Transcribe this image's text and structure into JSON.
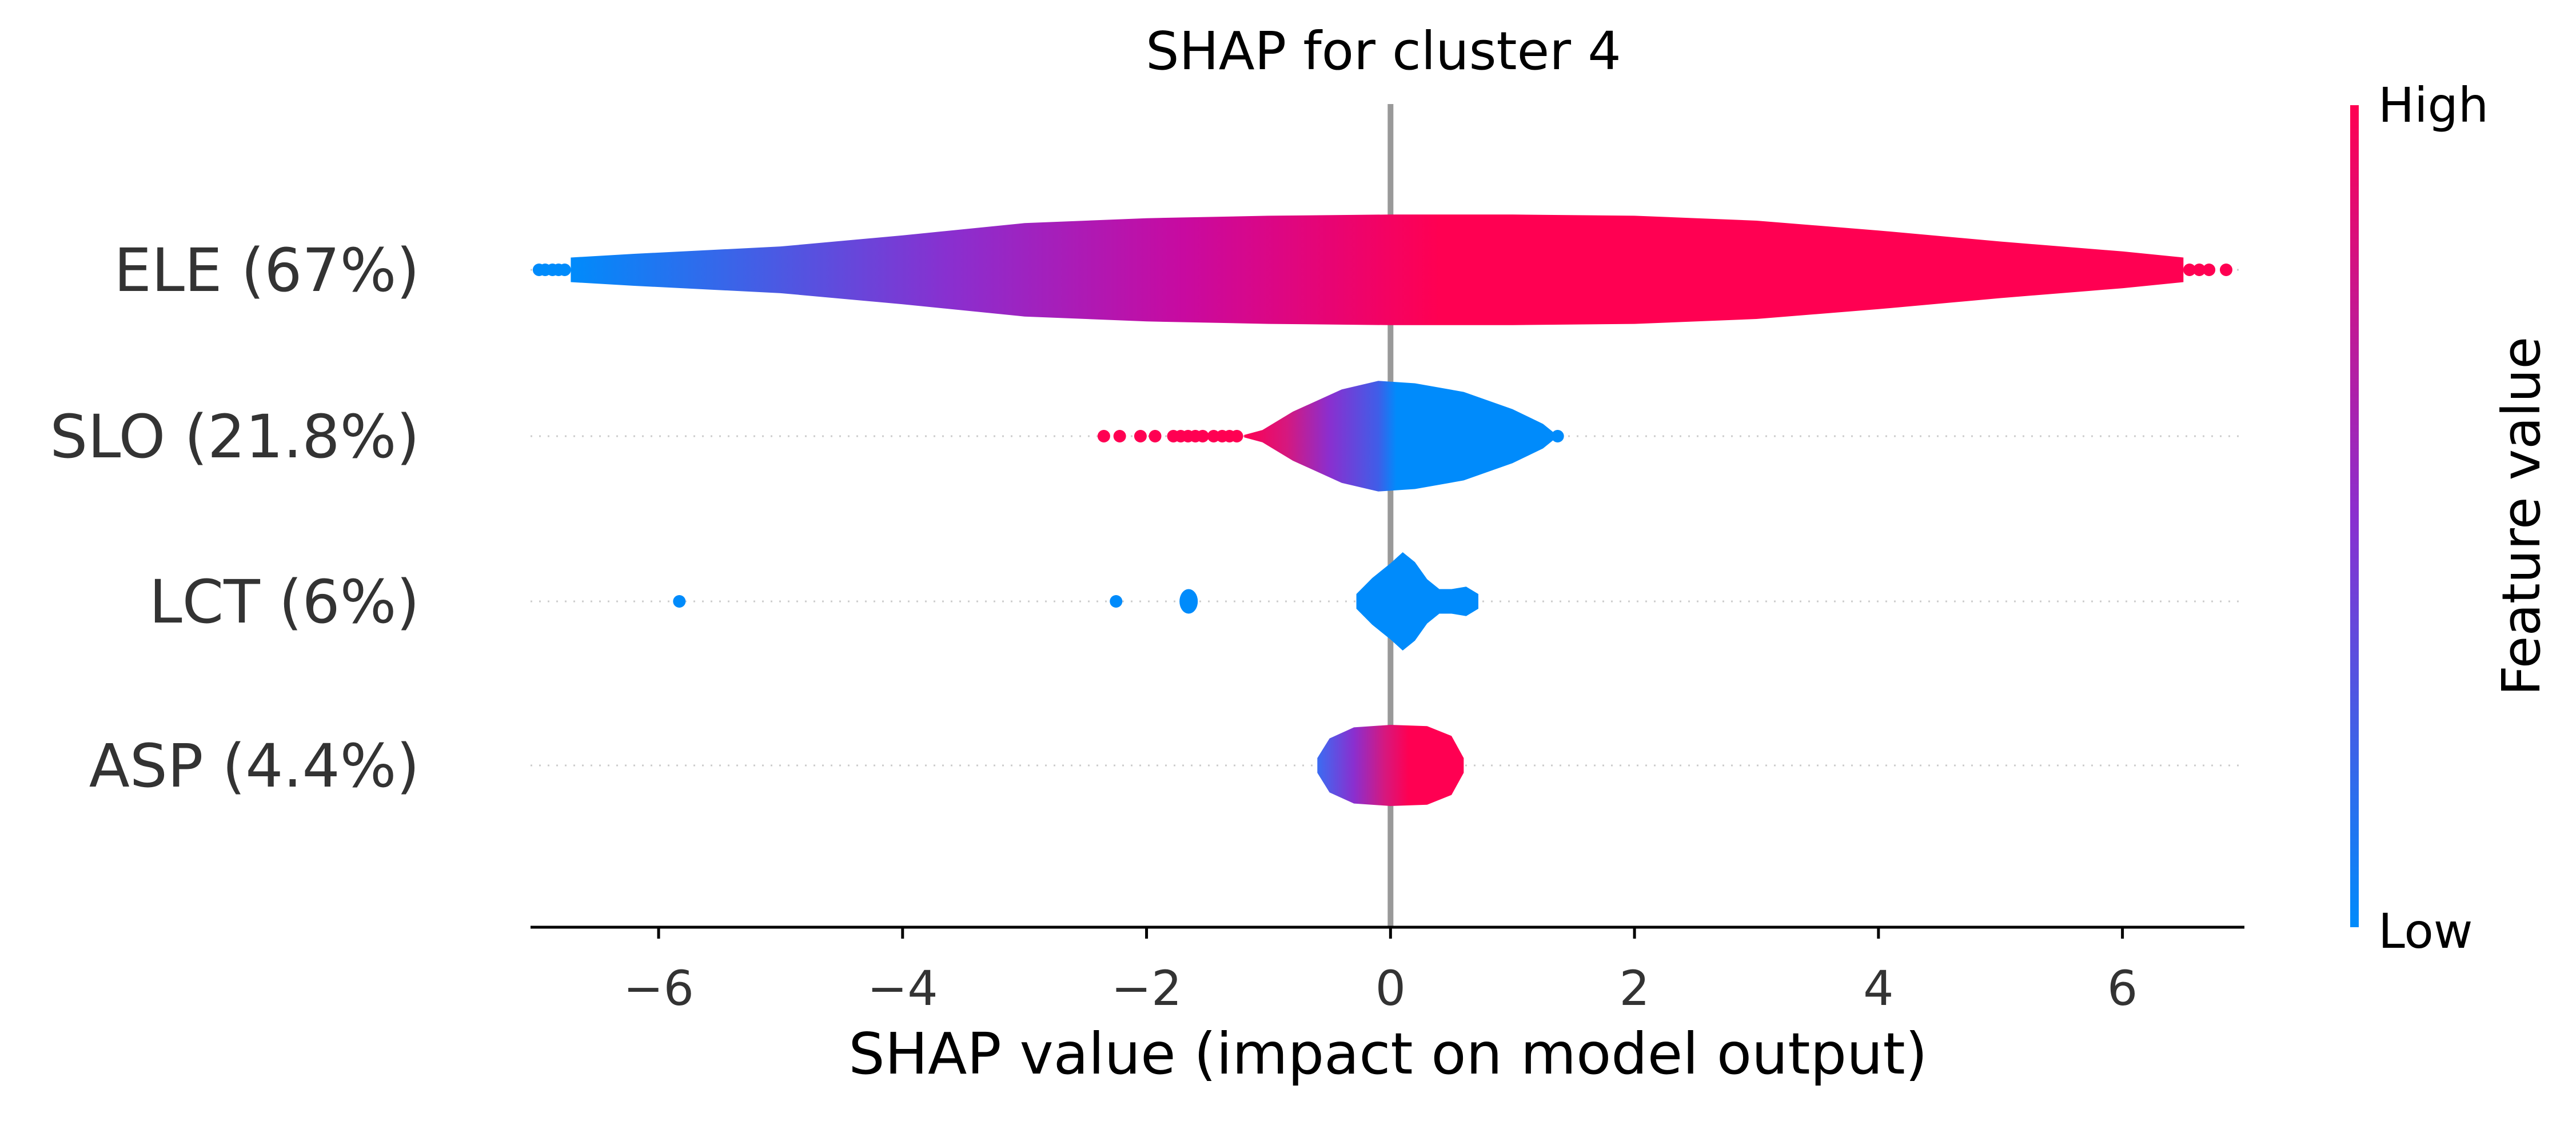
{
  "chart_data": {
    "type": "violin",
    "title": "SHAP for cluster 4",
    "xlabel": "SHAP value (impact on model output)",
    "xlim": [
      -7.05,
      7.0
    ],
    "xticks": [
      -6,
      -4,
      -2,
      0,
      2,
      4,
      6
    ],
    "xtick_labels": [
      "−6",
      "−4",
      "−2",
      "0",
      "2",
      "4",
      "6"
    ],
    "colorbar": {
      "label": "Feature value",
      "high_label": "High",
      "low_label": "Low",
      "high_color": "#ff0052",
      "low_color": "#008bfb"
    },
    "features": [
      {
        "label": "ELE (67%)",
        "violin": [
          [
            -6.72,
            0.5
          ],
          [
            -6.2,
            0.65
          ],
          [
            -5,
            0.95
          ],
          [
            -4,
            1.4
          ],
          [
            -3,
            1.9
          ],
          [
            -2,
            2.1
          ],
          [
            -1,
            2.2
          ],
          [
            0,
            2.25
          ],
          [
            1,
            2.25
          ],
          [
            2,
            2.2
          ],
          [
            3,
            2.0
          ],
          [
            4,
            1.6
          ],
          [
            5,
            1.15
          ],
          [
            6,
            0.75
          ],
          [
            6.5,
            0.5
          ]
        ],
        "gradient": [
          [
            -6.72,
            "#008bfb"
          ],
          [
            -3.6,
            "#8a2fcf"
          ],
          [
            -1.7,
            "#c80aa0"
          ],
          [
            0.4,
            "#ff0052"
          ],
          [
            6.5,
            "#ff0052"
          ]
        ],
        "points": [
          {
            "x": -6.98,
            "color": "low"
          },
          {
            "x": -6.93,
            "color": "low"
          },
          {
            "x": -6.87,
            "color": "low"
          },
          {
            "x": -6.82,
            "color": "low"
          },
          {
            "x": -6.77,
            "color": "low"
          },
          {
            "x": 6.55,
            "color": "high"
          },
          {
            "x": 6.63,
            "color": "high"
          },
          {
            "x": 6.71,
            "color": "high"
          },
          {
            "x": 6.85,
            "color": "high"
          }
        ]
      },
      {
        "label": "SLO (21.8%)",
        "violin": [
          [
            -1.2,
            0.05
          ],
          [
            -1.05,
            0.25
          ],
          [
            -0.8,
            1.0
          ],
          [
            -0.4,
            1.9
          ],
          [
            -0.1,
            2.25
          ],
          [
            0.2,
            2.15
          ],
          [
            0.6,
            1.8
          ],
          [
            1.0,
            1.1
          ],
          [
            1.25,
            0.5
          ],
          [
            1.35,
            0.1
          ]
        ],
        "gradient": [
          [
            -1.2,
            "#ff0052"
          ],
          [
            -0.85,
            "#d5187f"
          ],
          [
            -0.5,
            "#8a2fcf"
          ],
          [
            -0.1,
            "#3f5ee8"
          ],
          [
            0.05,
            "#008bfb"
          ],
          [
            1.35,
            "#008bfb"
          ]
        ],
        "points": [
          {
            "x": -2.35,
            "color": "high"
          },
          {
            "x": -2.22,
            "color": "high"
          },
          {
            "x": -2.05,
            "color": "high"
          },
          {
            "x": -1.93,
            "color": "high"
          },
          {
            "x": -1.78,
            "color": "high"
          },
          {
            "x": -1.72,
            "color": "high"
          },
          {
            "x": -1.66,
            "color": "high"
          },
          {
            "x": -1.6,
            "color": "high"
          },
          {
            "x": -1.54,
            "color": "high"
          },
          {
            "x": -1.45,
            "color": "high"
          },
          {
            "x": -1.38,
            "color": "high"
          },
          {
            "x": -1.32,
            "color": "high"
          },
          {
            "x": -1.26,
            "color": "high"
          },
          {
            "x": 1.37,
            "color": "low"
          }
        ]
      },
      {
        "label": "LCT (6%)",
        "violin": [
          [
            -0.28,
            0.3
          ],
          [
            -0.15,
            0.95
          ],
          [
            0.0,
            1.55
          ],
          [
            0.1,
            2.0
          ],
          [
            0.2,
            1.6
          ],
          [
            0.3,
            0.9
          ],
          [
            0.4,
            0.5
          ],
          [
            0.5,
            0.5
          ],
          [
            0.62,
            0.6
          ],
          [
            0.72,
            0.3
          ]
        ],
        "gradient": [
          [
            -0.3,
            "#008bfb"
          ],
          [
            0.75,
            "#008bfb"
          ]
        ],
        "points": [
          {
            "x": -5.83,
            "color": "low"
          },
          {
            "x": -2.25,
            "color": "low"
          }
        ],
        "blobs": [
          {
            "x0": -1.73,
            "x1": -1.58,
            "h": 0.5,
            "color": "low"
          }
        ]
      },
      {
        "label": "ASP (4.4%)",
        "violin": [
          [
            -0.6,
            0.3
          ],
          [
            -0.5,
            1.1
          ],
          [
            -0.3,
            1.55
          ],
          [
            0.0,
            1.65
          ],
          [
            0.3,
            1.6
          ],
          [
            0.5,
            1.2
          ],
          [
            0.6,
            0.3
          ]
        ],
        "gradient": [
          [
            -0.6,
            "#3b6cf2"
          ],
          [
            -0.3,
            "#8a2fcf"
          ],
          [
            -0.05,
            "#d5187f"
          ],
          [
            0.15,
            "#ff0052"
          ],
          [
            0.6,
            "#ff0052"
          ]
        ],
        "points": []
      }
    ]
  }
}
